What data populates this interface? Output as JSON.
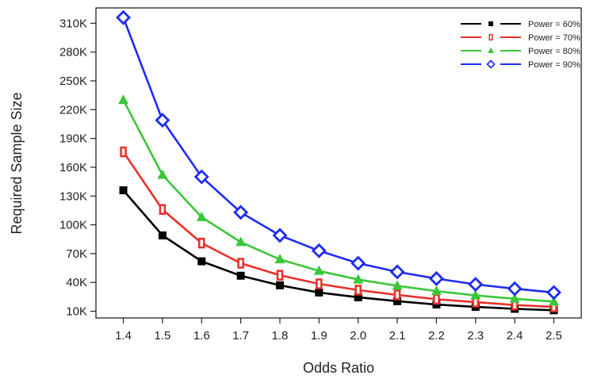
{
  "chart_data": {
    "type": "line",
    "title": "",
    "xlabel": "Odds Ratio",
    "ylabel": "Required Sample Size",
    "x": [
      1.4,
      1.5,
      1.6,
      1.7,
      1.8,
      1.9,
      2.0,
      2.1,
      2.2,
      2.3,
      2.4,
      2.5
    ],
    "x_tick_labels": [
      "1.4",
      "1.5",
      "1.6",
      "1.7",
      "1.8",
      "1.9",
      "2.0",
      "2.1",
      "2.2",
      "2.3",
      "2.4",
      "2.5"
    ],
    "y_tick_labels": [
      "10K",
      "40K",
      "70K",
      "100K",
      "130K",
      "160K",
      "190K",
      "220K",
      "250K",
      "280K",
      "310K"
    ],
    "y_ticks": [
      10000,
      40000,
      70000,
      100000,
      130000,
      160000,
      190000,
      220000,
      250000,
      280000,
      310000
    ],
    "xlim": [
      1.33,
      2.57
    ],
    "ylim": [
      3000,
      326000
    ],
    "grid": false,
    "legend_position": "top-right",
    "series": [
      {
        "name": "Power = 60%",
        "color": "#000000",
        "marker": "square",
        "values": [
          136000,
          89000,
          62000,
          47000,
          37000,
          29500,
          24500,
          20500,
          17000,
          14500,
          12500,
          11000
        ]
      },
      {
        "name": "Power = 70%",
        "color": "#e8302a",
        "marker": "rect-outline",
        "values": [
          176000,
          116000,
          81000,
          60000,
          47500,
          38500,
          32000,
          27000,
          22500,
          19500,
          16500,
          14500
        ]
      },
      {
        "name": "Power = 80%",
        "color": "#3ac73a",
        "marker": "triangle",
        "values": [
          230000,
          152000,
          108000,
          82000,
          64000,
          52000,
          43000,
          36500,
          31000,
          26500,
          23000,
          20000
        ]
      },
      {
        "name": "Power = 90%",
        "color": "#1e2cf0",
        "marker": "diamond-outline",
        "values": [
          316000,
          209000,
          150000,
          113000,
          89000,
          73000,
          60000,
          51000,
          44000,
          38000,
          33500,
          29500
        ]
      }
    ]
  }
}
